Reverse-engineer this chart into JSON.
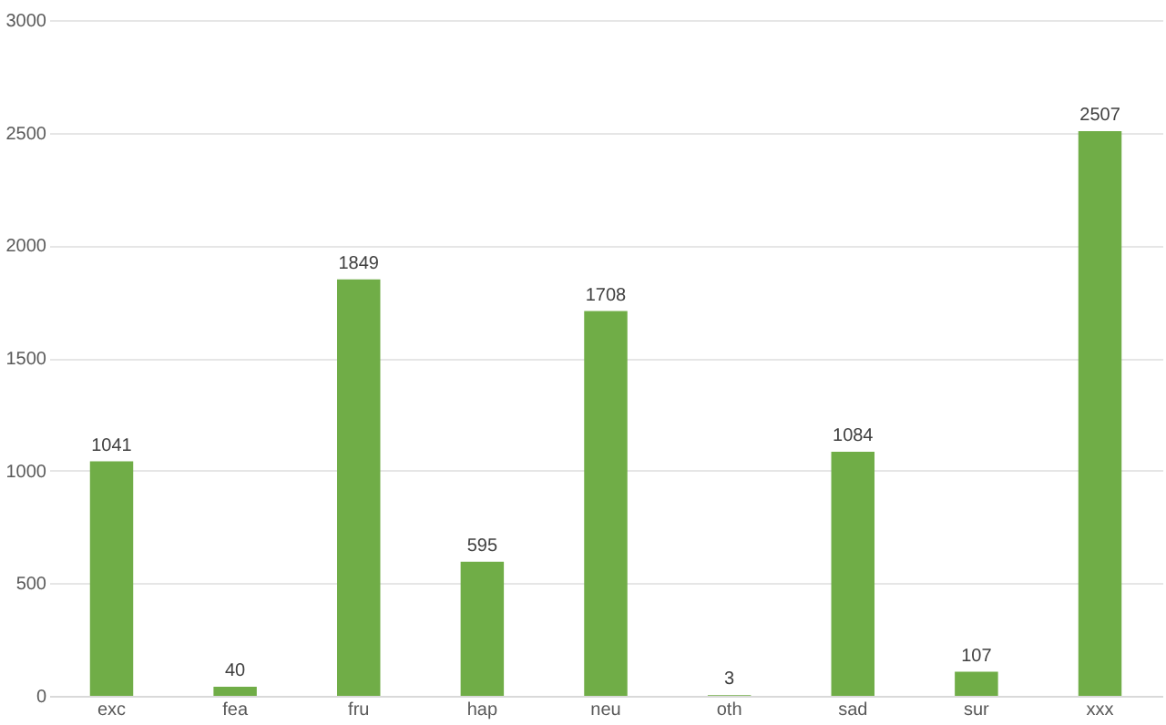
{
  "chart_data": {
    "type": "bar",
    "categories": [
      "exc",
      "fea",
      "fru",
      "hap",
      "neu",
      "oth",
      "sad",
      "sur",
      "xxx"
    ],
    "values": [
      1041,
      40,
      1849,
      595,
      1708,
      3,
      1084,
      107,
      2507
    ],
    "color": "#70ad47",
    "ylim": [
      0,
      3000
    ],
    "yticks": [
      0,
      500,
      1000,
      1500,
      2000,
      2500,
      3000
    ],
    "grid": "y",
    "data_labels": true
  }
}
